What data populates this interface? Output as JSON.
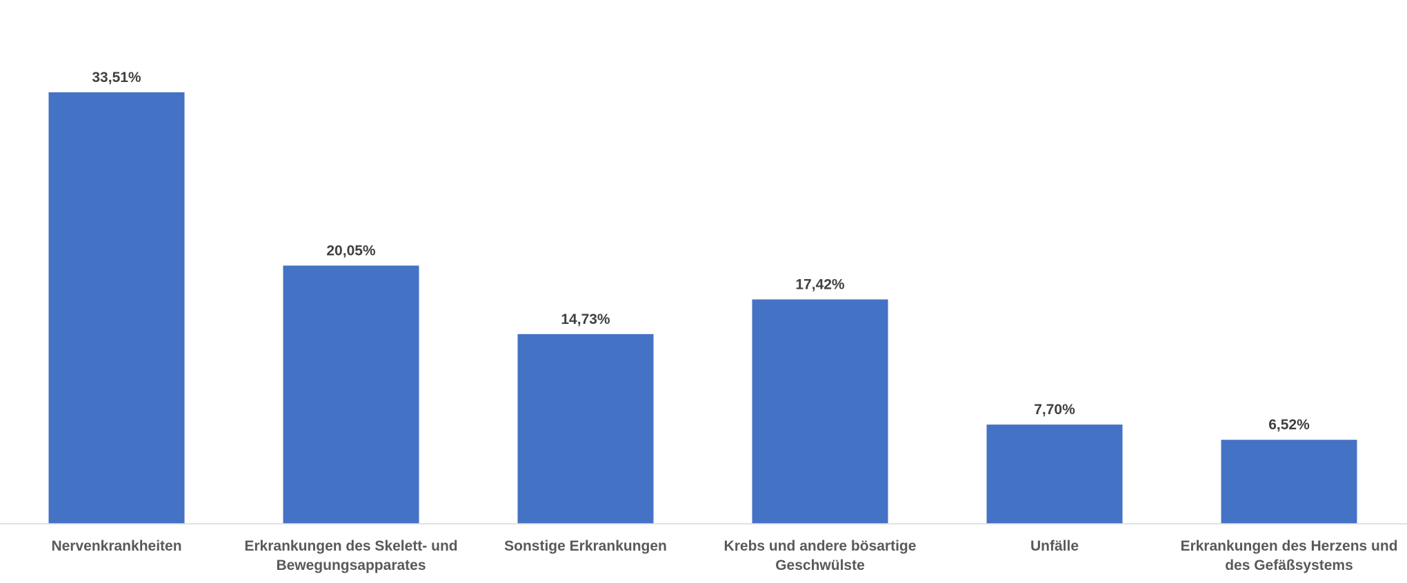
{
  "chart_data": {
    "type": "bar",
    "categories": [
      [
        "Nervenkrankheiten"
      ],
      [
        "Erkrankungen des Skelett- und",
        "Bewegungsapparates"
      ],
      [
        "Sonstige Erkrankungen"
      ],
      [
        "Krebs und andere bösartige",
        "Geschwülste"
      ],
      [
        "Unfälle"
      ],
      [
        "Erkrankungen des Herzens und",
        "des Gefäßsystems"
      ]
    ],
    "values": [
      33.51,
      20.05,
      14.73,
      17.42,
      7.7,
      6.52
    ],
    "data_labels": [
      "33,51%",
      "20,05%",
      "14,73%",
      "17,42%",
      "7,70%",
      "6,52%"
    ],
    "ylim": [
      0,
      38
    ],
    "grid": false,
    "legend": "none",
    "bar_color": "#4472C4",
    "axis_color": "#D9D9D9"
  }
}
